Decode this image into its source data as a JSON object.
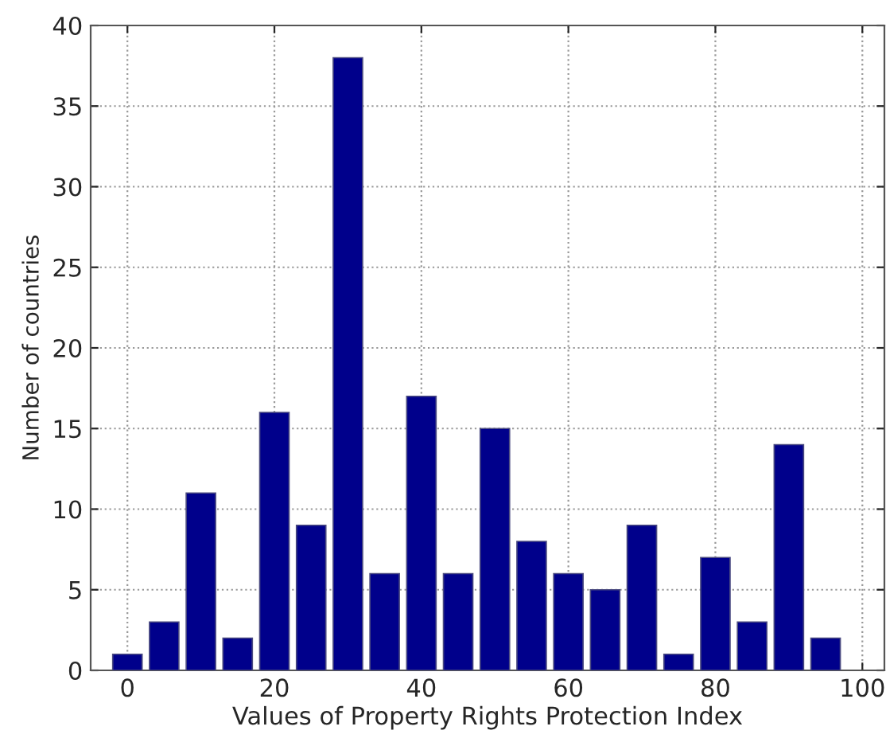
{
  "chart_data": {
    "type": "bar",
    "xlabel": "Values of Property Rights Protection Index",
    "ylabel": "Number of countries",
    "x": [
      0,
      5,
      10,
      15,
      20,
      25,
      30,
      35,
      40,
      45,
      50,
      55,
      60,
      65,
      70,
      75,
      80,
      85,
      90,
      95
    ],
    "values": [
      1,
      3,
      11,
      2,
      16,
      9,
      38,
      6,
      17,
      6,
      15,
      8,
      6,
      5,
      9,
      1,
      7,
      3,
      14,
      2
    ],
    "color": "#00008b",
    "xlim": [
      -5,
      103
    ],
    "xticks": [
      0,
      20,
      40,
      60,
      80,
      100
    ],
    "ylim": [
      0,
      40
    ],
    "yticks": [
      0,
      5,
      10,
      15,
      20,
      25,
      30,
      35,
      40
    ],
    "grid": true
  }
}
